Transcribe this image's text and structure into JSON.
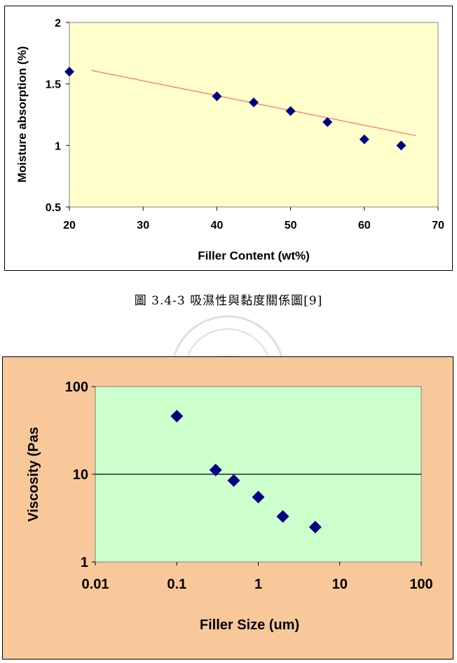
{
  "chart_data": [
    {
      "type": "scatter",
      "title": "",
      "xlabel": "Filler Content (wt%)",
      "ylabel": "Moisture absorption (%)",
      "xlim": [
        20,
        70
      ],
      "ylim": [
        0.5,
        2
      ],
      "x_ticks": [
        "20",
        "30",
        "40",
        "50",
        "60",
        "70"
      ],
      "y_ticks": [
        "0.5",
        "1",
        "1.5",
        "2"
      ],
      "x": [
        20,
        40,
        45,
        50,
        55,
        60,
        65
      ],
      "y": [
        1.6,
        1.4,
        1.35,
        1.28,
        1.19,
        1.05,
        1.0
      ],
      "trendline": {
        "x": [
          23,
          67
        ],
        "y": [
          1.61,
          1.08
        ]
      },
      "grid": false,
      "plot_bg": "#ffffcc",
      "marker_color": "#000080",
      "trend_color": "#ff5050"
    },
    {
      "type": "scatter",
      "title": "",
      "xlabel": "Filler Size  (um)",
      "ylabel": "Viscosity  (Pas",
      "xscale": "log",
      "yscale": "log",
      "xlim": [
        0.01,
        100
      ],
      "ylim": [
        1,
        100
      ],
      "x_ticks": [
        "0.01",
        "0.1",
        "1",
        "10",
        "100"
      ],
      "y_ticks": [
        "1",
        "10",
        "100"
      ],
      "x": [
        0.1,
        0.3,
        0.5,
        1,
        2,
        5
      ],
      "y": [
        46,
        11.2,
        8.5,
        5.5,
        3.3,
        2.5
      ],
      "grid": "major y at 10",
      "plot_bg": "#ccffcc",
      "outer_bg": "#f9c89a",
      "marker_color": "#000080"
    }
  ],
  "caption": "圖 3.4-3 吸濕性與黏度關係圖[9]"
}
